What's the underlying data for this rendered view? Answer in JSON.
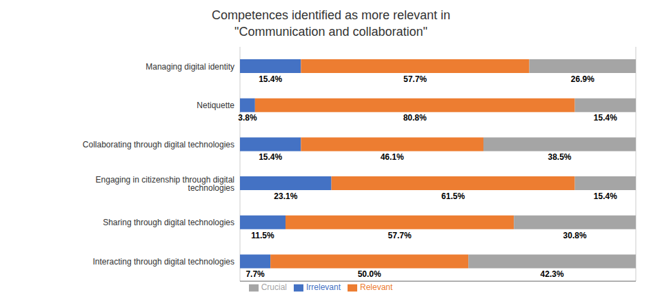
{
  "chart_data": {
    "type": "bar",
    "orientation": "horizontal",
    "stacked": true,
    "title": "Competences identified as more relevant in\n\"Communication and collaboration\"",
    "categories": [
      "Managing digital identity",
      "Netiquette",
      "Collaborating through digital technologies",
      "Engaging in citizenship through digital technologies",
      "Sharing through digital technologies",
      "Interacting through digital technologies"
    ],
    "series": [
      {
        "name": "Irrelevant",
        "color": "#4472C4",
        "values": [
          15.4,
          3.8,
          15.4,
          23.1,
          11.5,
          7.7
        ],
        "value_labels": [
          "15.4%",
          "3.8%",
          "15.4%",
          "23.1%",
          "11.5%",
          "7.7%"
        ]
      },
      {
        "name": "Relevant",
        "color": "#ED7D31",
        "values": [
          57.7,
          80.8,
          46.1,
          61.5,
          57.7,
          50.0
        ],
        "value_labels": [
          "57.7%",
          "80.8%",
          "46.1%",
          "61.5%",
          "57.7%",
          "50.0%"
        ]
      },
      {
        "name": "Crucial",
        "color": "#A5A5A5",
        "values": [
          26.9,
          15.4,
          38.5,
          15.4,
          30.8,
          42.3
        ],
        "value_labels": [
          "26.9%",
          "15.4%",
          "38.5%",
          "15.4%",
          "30.8%",
          "42.3%"
        ]
      }
    ],
    "xlim": [
      0,
      100
    ],
    "xticks": [
      25,
      50,
      75,
      100
    ],
    "grid": true,
    "tick_labels": "y",
    "data_labels": true,
    "legend": "bottom"
  }
}
